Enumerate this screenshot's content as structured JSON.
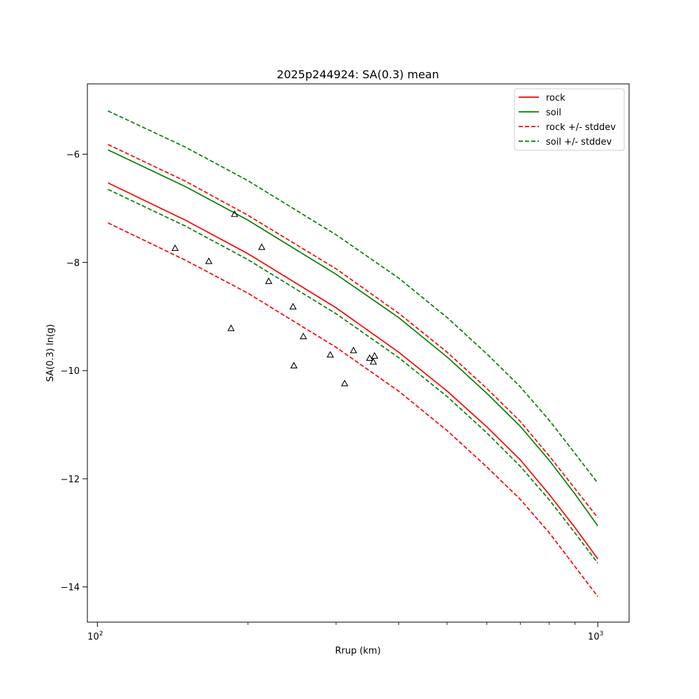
{
  "chart_data": {
    "type": "line",
    "title": "2025p244924: SA(0.3) mean",
    "xlabel": "Rrup (km)",
    "ylabel": "SA(0.3) ln(g)",
    "xscale": "log",
    "xlim": [
      95.5,
      1155
    ],
    "ylim": [
      -14.65,
      -4.7
    ],
    "x_ticks": [
      {
        "value": 100,
        "base": "10",
        "exp": "2"
      },
      {
        "value": 1000,
        "base": "10",
        "exp": "3"
      }
    ],
    "y_ticks": [
      {
        "value": -14,
        "label": "−14"
      },
      {
        "value": -12,
        "label": "−12"
      },
      {
        "value": -10,
        "label": "−10"
      },
      {
        "value": -8,
        "label": "−8"
      },
      {
        "value": -6,
        "label": "−6"
      }
    ],
    "grid": false,
    "legend_position": "top-right",
    "series": [
      {
        "name": "rock",
        "color": "#ff0000",
        "dash": false,
        "x": [
          105,
          150,
          200,
          300,
          400,
          500,
          600,
          700,
          800,
          900,
          1000
        ],
        "y": [
          -6.53,
          -7.22,
          -7.84,
          -8.84,
          -9.66,
          -10.38,
          -11.04,
          -11.65,
          -12.29,
          -12.9,
          -13.48
        ]
      },
      {
        "name": "soil",
        "color": "#008000",
        "dash": false,
        "x": [
          105,
          150,
          200,
          300,
          400,
          500,
          600,
          700,
          800,
          900,
          1000
        ],
        "y": [
          -5.92,
          -6.6,
          -7.22,
          -8.22,
          -9.02,
          -9.75,
          -10.42,
          -11.03,
          -11.66,
          -12.28,
          -12.87
        ]
      },
      {
        "name": "rock +/- stddev",
        "color": "#ff0000",
        "dash": true,
        "x": [
          105,
          150,
          200,
          300,
          400,
          500,
          600,
          700,
          800,
          900,
          1000
        ],
        "y": [
          -5.82,
          -6.5,
          -7.13,
          -8.12,
          -8.94,
          -9.66,
          -10.33,
          -10.94,
          -11.58,
          -12.18,
          -12.72
        ]
      },
      {
        "name": "",
        "color": "#ff0000",
        "dash": true,
        "x": [
          105,
          150,
          200,
          300,
          400,
          500,
          600,
          700,
          800,
          900,
          1000
        ],
        "y": [
          -7.27,
          -7.96,
          -8.57,
          -9.57,
          -10.38,
          -11.11,
          -11.78,
          -12.38,
          -13.0,
          -13.62,
          -14.18
        ]
      },
      {
        "name": "soil +/- stddev",
        "color": "#008000",
        "dash": true,
        "x": [
          105,
          150,
          200,
          300,
          400,
          500,
          600,
          700,
          800,
          900,
          1000
        ],
        "y": [
          -5.2,
          -5.87,
          -6.49,
          -7.49,
          -8.29,
          -9.02,
          -9.69,
          -10.3,
          -10.92,
          -11.53,
          -12.08
        ]
      },
      {
        "name": "",
        "color": "#008000",
        "dash": true,
        "x": [
          105,
          150,
          200,
          300,
          400,
          500,
          600,
          700,
          800,
          900,
          1000
        ],
        "y": [
          -6.65,
          -7.33,
          -7.95,
          -8.95,
          -9.76,
          -10.48,
          -11.15,
          -11.77,
          -12.39,
          -13.0,
          -13.56
        ]
      }
    ],
    "observations": {
      "marker": "triangle",
      "points": [
        {
          "x": 143,
          "y": -7.74
        },
        {
          "x": 167,
          "y": -7.98
        },
        {
          "x": 185,
          "y": -9.22
        },
        {
          "x": 188,
          "y": -7.11
        },
        {
          "x": 213,
          "y": -7.72
        },
        {
          "x": 220,
          "y": -8.35
        },
        {
          "x": 246,
          "y": -8.82
        },
        {
          "x": 247,
          "y": -9.91
        },
        {
          "x": 258,
          "y": -9.37
        },
        {
          "x": 292,
          "y": -9.71
        },
        {
          "x": 312,
          "y": -10.24
        },
        {
          "x": 325,
          "y": -9.63
        },
        {
          "x": 350,
          "y": -9.77
        },
        {
          "x": 356,
          "y": -9.84
        },
        {
          "x": 358,
          "y": -9.73
        }
      ]
    }
  }
}
